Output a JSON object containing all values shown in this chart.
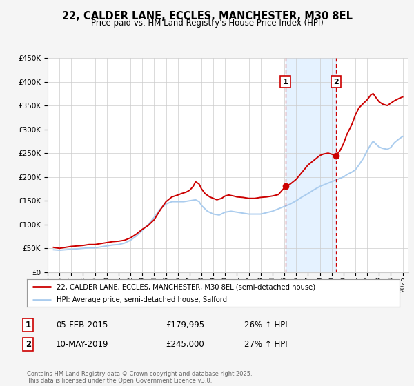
{
  "title": "22, CALDER LANE, ECCLES, MANCHESTER, M30 8EL",
  "subtitle": "Price paid vs. HM Land Registry's House Price Index (HPI)",
  "background_color": "#f5f5f5",
  "plot_bg_color": "#ffffff",
  "grid_color": "#cccccc",
  "red_color": "#cc0000",
  "blue_color": "#aaccee",
  "marker1_date": 2015.09,
  "marker1_price": 179995,
  "marker1_label": "1",
  "marker1_text": "05-FEB-2015",
  "marker1_price_text": "£179,995",
  "marker1_hpi_text": "26% ↑ HPI",
  "marker2_date": 2019.36,
  "marker2_price": 245000,
  "marker2_label": "2",
  "marker2_text": "10-MAY-2019",
  "marker2_price_text": "£245,000",
  "marker2_hpi_text": "27% ↑ HPI",
  "ylim": [
    0,
    450000
  ],
  "xlim": [
    1995,
    2025.5
  ],
  "legend_label_red": "22, CALDER LANE, ECCLES, MANCHESTER, M30 8EL (semi-detached house)",
  "legend_label_blue": "HPI: Average price, semi-detached house, Salford",
  "footer": "Contains HM Land Registry data © Crown copyright and database right 2025.\nThis data is licensed under the Open Government Licence v3.0.",
  "red_series": [
    [
      1995.5,
      52000
    ],
    [
      1996,
      50000
    ],
    [
      1996.5,
      52000
    ],
    [
      1997,
      54000
    ],
    [
      1997.5,
      55000
    ],
    [
      1998,
      56000
    ],
    [
      1998.5,
      58000
    ],
    [
      1999,
      58000
    ],
    [
      1999.5,
      60000
    ],
    [
      2000,
      62000
    ],
    [
      2000.5,
      64000
    ],
    [
      2001,
      65000
    ],
    [
      2001.5,
      67000
    ],
    [
      2002,
      72000
    ],
    [
      2002.5,
      80000
    ],
    [
      2003,
      90000
    ],
    [
      2003.5,
      98000
    ],
    [
      2004,
      110000
    ],
    [
      2004.5,
      130000
    ],
    [
      2005,
      148000
    ],
    [
      2005.5,
      158000
    ],
    [
      2006,
      162000
    ],
    [
      2006.3,
      165000
    ],
    [
      2006.7,
      168000
    ],
    [
      2007,
      172000
    ],
    [
      2007.3,
      180000
    ],
    [
      2007.5,
      190000
    ],
    [
      2007.8,
      185000
    ],
    [
      2008,
      175000
    ],
    [
      2008.3,
      165000
    ],
    [
      2008.7,
      158000
    ],
    [
      2009,
      155000
    ],
    [
      2009.3,
      152000
    ],
    [
      2009.7,
      155000
    ],
    [
      2010,
      160000
    ],
    [
      2010.3,
      162000
    ],
    [
      2010.7,
      160000
    ],
    [
      2011,
      158000
    ],
    [
      2011.5,
      157000
    ],
    [
      2012,
      155000
    ],
    [
      2012.5,
      155000
    ],
    [
      2013,
      157000
    ],
    [
      2013.5,
      158000
    ],
    [
      2014,
      160000
    ],
    [
      2014.5,
      163000
    ],
    [
      2015.09,
      179995
    ],
    [
      2015.5,
      185000
    ],
    [
      2016,
      195000
    ],
    [
      2016.5,
      210000
    ],
    [
      2017,
      225000
    ],
    [
      2017.5,
      235000
    ],
    [
      2018,
      245000
    ],
    [
      2018.3,
      248000
    ],
    [
      2018.7,
      250000
    ],
    [
      2019.36,
      245000
    ],
    [
      2019.7,
      255000
    ],
    [
      2020,
      270000
    ],
    [
      2020.3,
      290000
    ],
    [
      2020.7,
      310000
    ],
    [
      2021,
      330000
    ],
    [
      2021.3,
      345000
    ],
    [
      2021.7,
      355000
    ],
    [
      2022,
      362000
    ],
    [
      2022.3,
      372000
    ],
    [
      2022.5,
      375000
    ],
    [
      2022.7,
      368000
    ],
    [
      2023,
      358000
    ],
    [
      2023.3,
      353000
    ],
    [
      2023.7,
      350000
    ],
    [
      2024,
      355000
    ],
    [
      2024.3,
      360000
    ],
    [
      2024.7,
      365000
    ],
    [
      2025,
      368000
    ]
  ],
  "blue_series": [
    [
      1995.5,
      47000
    ],
    [
      1996,
      46000
    ],
    [
      1996.5,
      47000
    ],
    [
      1997,
      48000
    ],
    [
      1997.5,
      49000
    ],
    [
      1998,
      50000
    ],
    [
      1998.5,
      51000
    ],
    [
      1999,
      51000
    ],
    [
      1999.5,
      53000
    ],
    [
      2000,
      55000
    ],
    [
      2000.5,
      57000
    ],
    [
      2001,
      58000
    ],
    [
      2001.5,
      61000
    ],
    [
      2002,
      67000
    ],
    [
      2002.5,
      76000
    ],
    [
      2003,
      88000
    ],
    [
      2003.5,
      100000
    ],
    [
      2004,
      115000
    ],
    [
      2004.5,
      132000
    ],
    [
      2005,
      143000
    ],
    [
      2005.5,
      148000
    ],
    [
      2006,
      148000
    ],
    [
      2006.5,
      148000
    ],
    [
      2007,
      150000
    ],
    [
      2007.5,
      152000
    ],
    [
      2007.8,
      148000
    ],
    [
      2008,
      140000
    ],
    [
      2008.5,
      128000
    ],
    [
      2009,
      122000
    ],
    [
      2009.5,
      120000
    ],
    [
      2010,
      126000
    ],
    [
      2010.5,
      128000
    ],
    [
      2011,
      126000
    ],
    [
      2011.5,
      124000
    ],
    [
      2012,
      122000
    ],
    [
      2012.5,
      122000
    ],
    [
      2013,
      122000
    ],
    [
      2013.5,
      125000
    ],
    [
      2014,
      128000
    ],
    [
      2014.5,
      133000
    ],
    [
      2015,
      138000
    ],
    [
      2015.5,
      143000
    ],
    [
      2016,
      150000
    ],
    [
      2016.5,
      158000
    ],
    [
      2017,
      165000
    ],
    [
      2017.5,
      173000
    ],
    [
      2018,
      180000
    ],
    [
      2018.5,
      185000
    ],
    [
      2019,
      190000
    ],
    [
      2019.5,
      195000
    ],
    [
      2020,
      200000
    ],
    [
      2020.3,
      205000
    ],
    [
      2020.7,
      210000
    ],
    [
      2021,
      215000
    ],
    [
      2021.3,
      225000
    ],
    [
      2021.7,
      240000
    ],
    [
      2022,
      255000
    ],
    [
      2022.3,
      268000
    ],
    [
      2022.5,
      275000
    ],
    [
      2022.7,
      270000
    ],
    [
      2023,
      263000
    ],
    [
      2023.3,
      260000
    ],
    [
      2023.7,
      258000
    ],
    [
      2024,
      262000
    ],
    [
      2024.3,
      272000
    ],
    [
      2024.7,
      280000
    ],
    [
      2025,
      285000
    ]
  ]
}
